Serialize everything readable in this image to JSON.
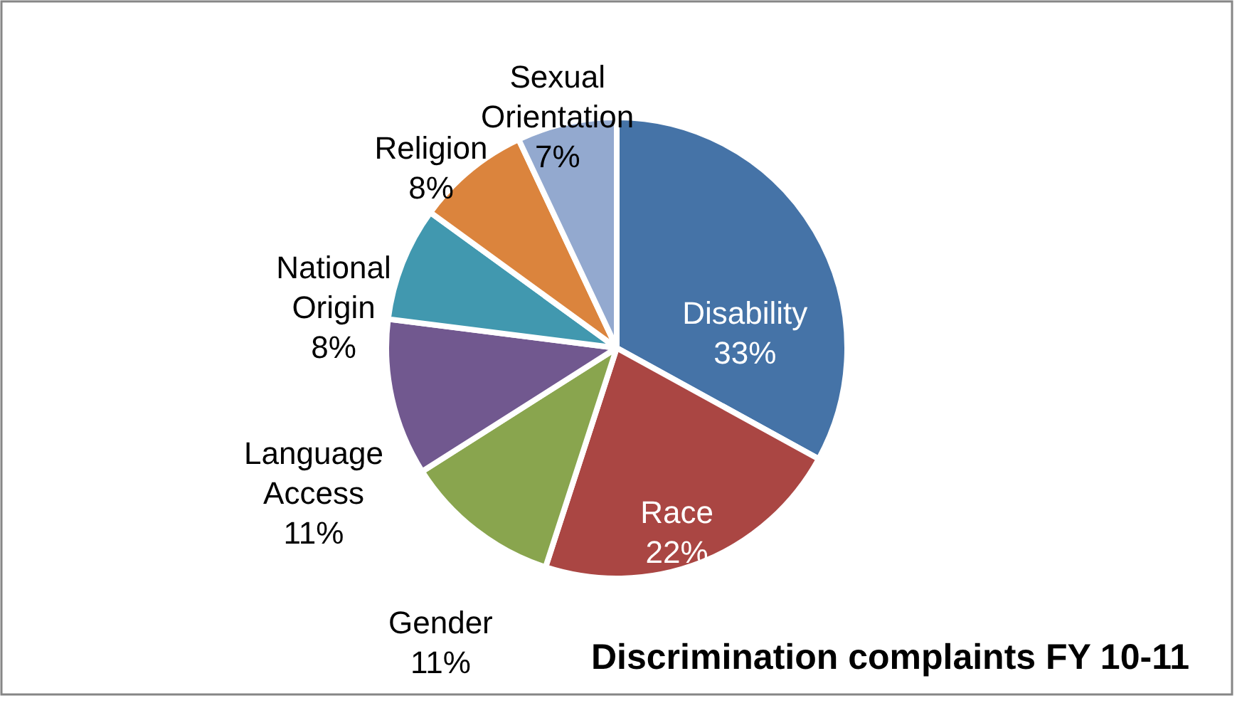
{
  "chart_data": {
    "type": "pie",
    "title": "Discrimination complaints FY 10-11",
    "categories": [
      "Disability",
      "Race",
      "Gender",
      "Language Access",
      "National Origin",
      "Religion",
      "Sexual Orientation"
    ],
    "values": [
      33,
      22,
      11,
      11,
      8,
      8,
      7
    ],
    "value_labels": [
      "33%",
      "22%",
      "11%",
      "11%",
      "8%",
      "8%",
      "7%"
    ],
    "colors": [
      "#4573a7",
      "#aa4643",
      "#89a54e",
      "#71588f",
      "#4198af",
      "#db843d",
      "#93a9cf"
    ]
  }
}
